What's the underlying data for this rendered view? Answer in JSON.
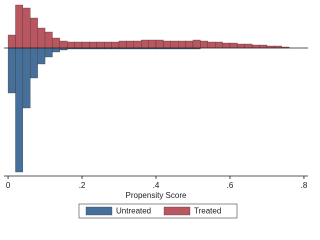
{
  "chart_data": {
    "type": "mirror-histogram",
    "xlabel": "Propensity Score",
    "bins": [
      0,
      0.02,
      0.04,
      0.06,
      0.08,
      0.1,
      0.12,
      0.14,
      0.16,
      0.18,
      0.2,
      0.22,
      0.24,
      0.26,
      0.28,
      0.3,
      0.32,
      0.34,
      0.36,
      0.38,
      0.4,
      0.42,
      0.44,
      0.46,
      0.48,
      0.5,
      0.52,
      0.54,
      0.56,
      0.58,
      0.6,
      0.62,
      0.64,
      0.66,
      0.68,
      0.7,
      0.72,
      0.74,
      0.76
    ],
    "series": [
      {
        "name": "Untreated",
        "color": "#46709a",
        "values": [
          -45,
          -124,
          -60,
          -30,
          -16,
          -9,
          -4,
          -2,
          -1,
          -1,
          -1,
          -1,
          -1,
          -1,
          -1,
          -1,
          -1,
          -1,
          -1,
          -1,
          -1,
          -1,
          -1,
          -1,
          -1,
          -1,
          0,
          0,
          0,
          0,
          0,
          0,
          0,
          0,
          0,
          0,
          0,
          0
        ]
      },
      {
        "name": "Treated",
        "color": "#b9565f",
        "values": [
          13,
          43,
          40,
          30,
          20,
          16,
          10,
          7,
          6,
          6,
          6,
          6,
          6,
          6,
          6,
          7,
          7,
          7,
          8,
          8,
          8,
          7,
          7,
          7,
          7,
          8,
          7,
          6,
          6,
          5,
          5,
          4,
          4,
          3,
          3,
          2,
          2,
          1
        ]
      }
    ],
    "xlim": [
      -0.011,
      0.811
    ],
    "xticks": [
      0,
      {
        "value": 0.2,
        "label": ".2"
      },
      {
        "value": 0.4,
        "label": ".4"
      },
      {
        "value": 0.6,
        "label": ".6"
      },
      {
        "value": 0.8,
        "label": ".8"
      }
    ],
    "ylim": [
      -127,
      43
    ]
  }
}
